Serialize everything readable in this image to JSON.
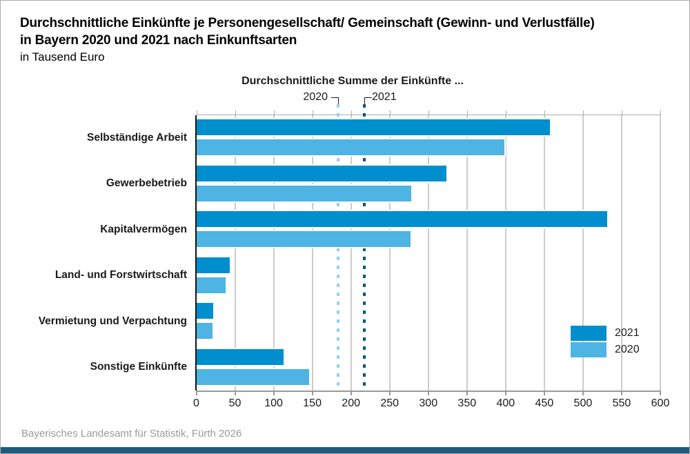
{
  "title": {
    "line1": "Durchschnittliche Einkünfte je Personengesellschaft/ Gemeinschaft (Gewinn- und Verlustfälle)",
    "line2": "in Bayern 2020 und 2021 nach Einkunftsarten",
    "subtitle": "in Tausend Euro"
  },
  "annotation": {
    "heading": "Durchschnittliche Summe der Einkünfte ...",
    "label_2020": "2020",
    "label_2021": "2021"
  },
  "chart_data": {
    "type": "bar",
    "orientation": "horizontal",
    "unit": "Tausend Euro",
    "title": "Durchschnittliche Einkünfte je Personengesellschaft/ Gemeinschaft (Gewinn- und Verlustfälle) in Bayern 2020 und 2021 nach Einkunftsarten",
    "categories": [
      "Selbständige Arbeit",
      "Gewerbebetrieb",
      "Kapitalvermögen",
      "Land- und Forstwirtschaft",
      "Vermietung und Verpachtung",
      "Sonstige Einkünfte"
    ],
    "series": [
      {
        "name": "2021",
        "color": "#008fce",
        "values": [
          457,
          323,
          531,
          43,
          22,
          113
        ]
      },
      {
        "name": "2020",
        "color": "#4db4e4",
        "values": [
          398,
          278,
          277,
          38,
          21,
          146
        ]
      }
    ],
    "reference_lines": [
      {
        "label": "2020",
        "value": 183,
        "color": "#9acfee",
        "style": "dashed"
      },
      {
        "label": "2021",
        "value": 217,
        "color": "#0e567e",
        "style": "dashed"
      }
    ],
    "xlim": [
      0,
      600
    ],
    "xticks": [
      0,
      50,
      100,
      150,
      200,
      250,
      300,
      350,
      400,
      450,
      500,
      550,
      600
    ],
    "grid": true,
    "legend_position": "inside-right"
  },
  "legend": {
    "items": [
      {
        "label": "2021",
        "color": "#008fce"
      },
      {
        "label": "2020",
        "color": "#4db4e4"
      }
    ]
  },
  "footer": {
    "source": "Bayerisches Landesamt für Statistik, Fürth 2026"
  },
  "colors": {
    "bar_2021": "#008fce",
    "bar_2020": "#4db4e4",
    "ref_2020": "#9acfee",
    "ref_2021": "#0e567e",
    "gridline": "#cccccc",
    "axis": "#999999",
    "text": "#1a1a1a",
    "footer_text": "#9b9b9b",
    "bottom_strip": "#1d5b7c"
  }
}
